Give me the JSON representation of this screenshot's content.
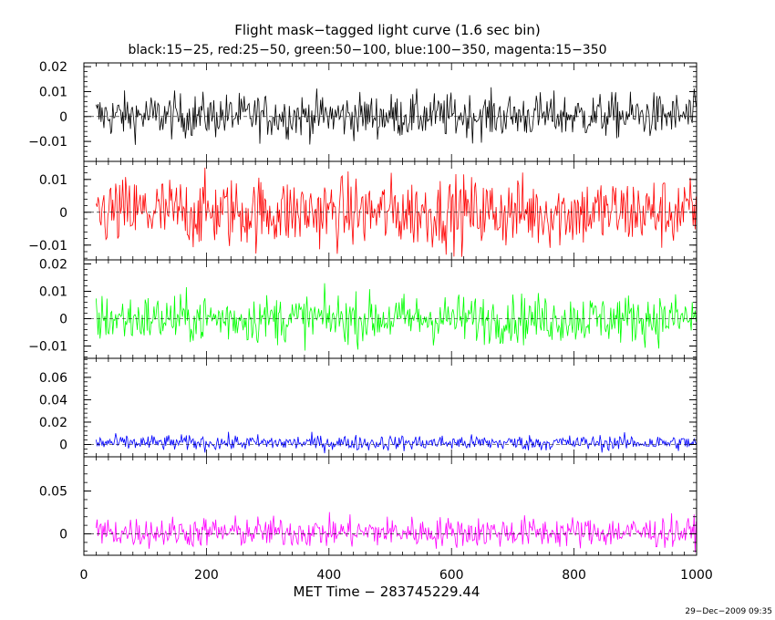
{
  "chart_data": {
    "type": "line",
    "title": "Flight mask−tagged light curve (1.6 sec bin)",
    "subtitle": "black:15−25, red:25−50, green:50−100, blue:100−350, magenta:15−350",
    "xlabel": "MET Time − 283745229.44",
    "footer": "29−Dec−2009 09:35",
    "x_range": [
      0,
      1000
    ],
    "x_data_range": [
      20,
      1000
    ],
    "bin_seconds": 1.6,
    "x_ticks": [
      {
        "value": 0,
        "label": "0"
      },
      {
        "value": 200,
        "label": "200"
      },
      {
        "value": 400,
        "label": "400"
      },
      {
        "value": 600,
        "label": "600"
      },
      {
        "value": 800,
        "label": "800"
      },
      {
        "value": 1000,
        "label": "1000"
      }
    ],
    "panels": [
      {
        "band": "15−25",
        "color": "#000000",
        "ylim": [
          -0.018,
          0.0215
        ],
        "mean": 0.0003,
        "sd": 0.0045,
        "y_ticks": [
          {
            "value": -0.01,
            "label": "−0.01"
          },
          {
            "value": 0,
            "label": "0"
          },
          {
            "value": 0.01,
            "label": "0.01"
          },
          {
            "value": 0.02,
            "label": "0.02"
          }
        ]
      },
      {
        "band": "25−50",
        "color": "#ff0000",
        "ylim": [
          -0.0145,
          0.0155
        ],
        "mean": 0.0,
        "sd": 0.0055,
        "y_ticks": [
          {
            "value": -0.01,
            "label": "−0.01"
          },
          {
            "value": 0,
            "label": "0"
          },
          {
            "value": 0.01,
            "label": "0.01"
          }
        ]
      },
      {
        "band": "50−100",
        "color": "#00ff00",
        "ylim": [
          -0.0145,
          0.0215
        ],
        "mean": 0.0,
        "sd": 0.0045,
        "y_ticks": [
          {
            "value": -0.01,
            "label": "−0.01"
          },
          {
            "value": 0,
            "label": "0"
          },
          {
            "value": 0.01,
            "label": "0.01"
          },
          {
            "value": 0.02,
            "label": "0.02"
          }
        ]
      },
      {
        "band": "100−350",
        "color": "#0000ff",
        "ylim": [
          -0.011,
          0.077
        ],
        "mean": 0.0015,
        "sd": 0.0035,
        "y_ticks": [
          {
            "value": 0,
            "label": "0"
          },
          {
            "value": 0.02,
            "label": "0.02"
          },
          {
            "value": 0.04,
            "label": "0.04"
          },
          {
            "value": 0.06,
            "label": "0.06"
          }
        ]
      },
      {
        "band": "15−350",
        "color": "#ff00ff",
        "ylim": [
          -0.025,
          0.09
        ],
        "mean": 0.002,
        "sd": 0.009,
        "y_ticks": [
          {
            "value": 0,
            "label": "0"
          },
          {
            "value": 0.05,
            "label": "0.05"
          }
        ]
      }
    ]
  }
}
